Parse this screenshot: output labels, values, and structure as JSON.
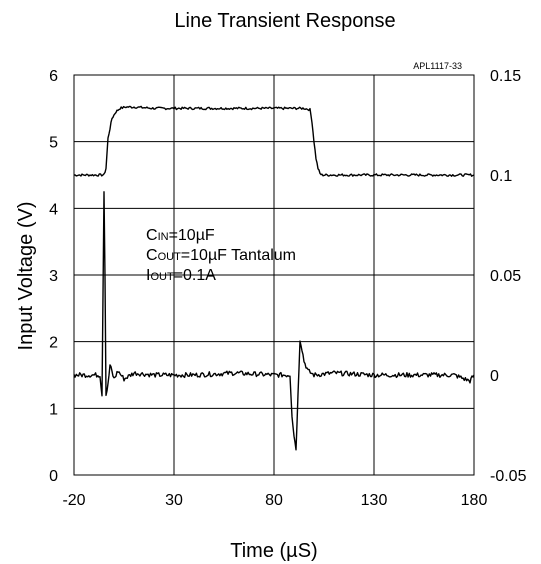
{
  "chart_data": {
    "type": "line",
    "title": "Line Transient Response",
    "part_number": "APL1117-33",
    "xlabel": "Time (µS)",
    "ylabel": "Input Voltage (V)",
    "xlim": [
      -20,
      180
    ],
    "ylim": [
      0,
      6
    ],
    "y2lim": [
      -0.05,
      0.15
    ],
    "x_ticks": [
      "-20",
      "30",
      "80",
      "130",
      "180"
    ],
    "y_ticks": [
      "0",
      "1",
      "2",
      "3",
      "4",
      "5",
      "6"
    ],
    "y2_ticks": [
      "-0.05",
      "0",
      "0.05",
      "0.1",
      "0.15"
    ],
    "grid": true,
    "annotations": [
      {
        "main": "C",
        "sub": "IN",
        "rest": "=10µF"
      },
      {
        "main": "C",
        "sub": "OUT",
        "rest": "=10µF Tantalum"
      },
      {
        "main": "I",
        "sub": "OUT",
        "rest": "=0.1A"
      }
    ],
    "series": [
      {
        "axis": "left",
        "x": [
          -20,
          -12,
          -5,
          -4,
          -3,
          -1,
          1,
          3,
          6,
          10,
          20,
          40,
          60,
          80,
          90,
          95,
          98,
          99,
          100,
          101,
          102,
          103,
          104,
          106,
          110,
          130,
          150,
          170,
          180
        ],
        "values": [
          4.5,
          4.5,
          4.5,
          4.6,
          5.05,
          5.35,
          5.45,
          5.5,
          5.52,
          5.52,
          5.5,
          5.5,
          5.5,
          5.5,
          5.5,
          5.5,
          5.48,
          5.3,
          5.0,
          4.75,
          4.6,
          4.52,
          4.5,
          4.5,
          4.5,
          4.5,
          4.5,
          4.5,
          4.5
        ]
      },
      {
        "axis": "right",
        "x": [
          -20,
          -12,
          -7,
          -6,
          -5,
          -4.5,
          -4,
          -3,
          -2,
          0,
          2,
          5,
          10,
          20,
          40,
          60,
          80,
          88,
          89,
          90,
          91,
          92,
          93,
          94,
          95,
          97,
          100,
          110,
          130,
          150,
          170,
          178,
          180
        ],
        "values": [
          0,
          0,
          0,
          -0.01,
          0.092,
          0.05,
          -0.01,
          -0.005,
          0.005,
          -0.002,
          0.002,
          -0.002,
          0.001,
          0,
          0,
          0.001,
          0,
          0,
          -0.02,
          -0.03,
          -0.037,
          -0.01,
          0.018,
          0.013,
          0.007,
          0.002,
          0,
          0.001,
          0,
          0,
          0,
          -0.003,
          0
        ]
      }
    ]
  }
}
